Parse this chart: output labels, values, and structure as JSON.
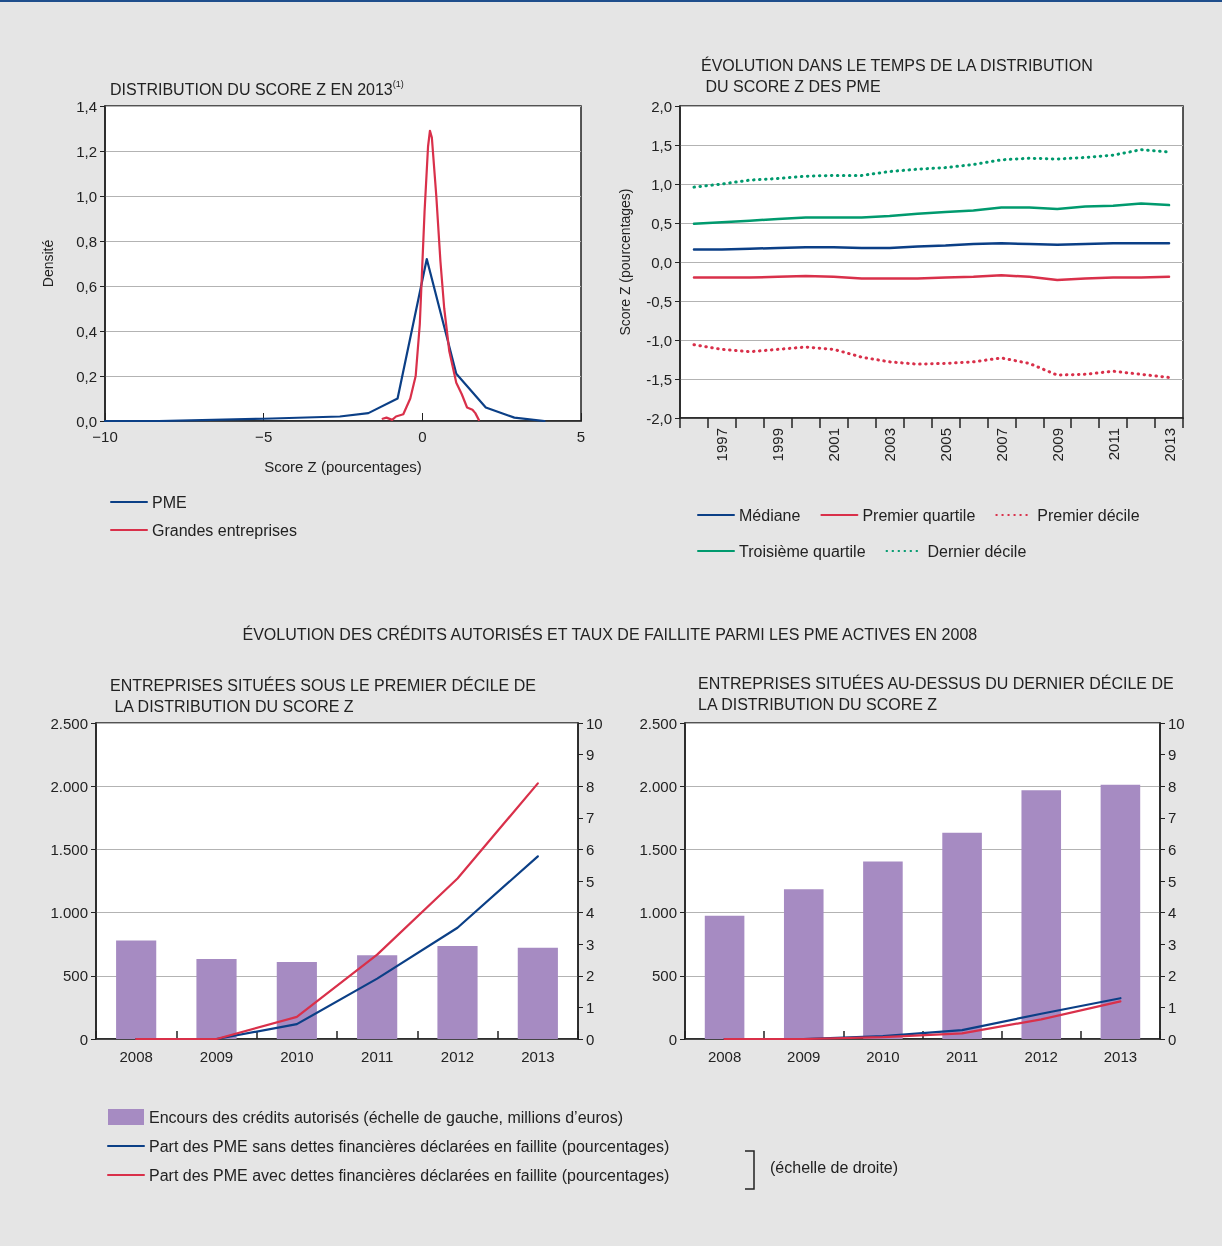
{
  "chart_data": [
    {
      "type": "line",
      "title": "DISTRIBUTION DU SCORE Z EN 2013$^{(1)}$",
      "xlabel": "Score Z (pourcentages)",
      "ylabel": "Densité",
      "xlim": [
        -10,
        5
      ],
      "xticks": [
        {
          "value": -10,
          "label": "−10"
        },
        {
          "value": -5,
          "label": "−5"
        },
        0,
        5
      ],
      "ylim": [
        0,
        1.4
      ],
      "yticks": [
        {
          "value": 0,
          "label": "0,0"
        },
        {
          "value": 0.2,
          "label": "0,2"
        },
        {
          "value": 0.4,
          "label": "0,4"
        },
        {
          "value": 0.6,
          "label": "0,6"
        },
        {
          "value": 0.8,
          "label": "0,8"
        },
        {
          "value": 1,
          "label": "1,0"
        },
        {
          "value": 1.2,
          "label": "1,2"
        },
        {
          "value": 1.4,
          "label": "1,4"
        }
      ],
      "grid": "y",
      "legend": "bottom",
      "marker": "none",
      "series": [
        {
          "name": "PME",
          "color": "#0b3f86",
          "x": [
            -10,
            -8.3,
            -5,
            -2.6,
            -1.7,
            -0.78,
            0.14,
            1.07,
            2.0,
            2.9,
            3.85
          ],
          "values": [
            0,
            0,
            0.01,
            0.02,
            0.035,
            0.1,
            0.72,
            0.21,
            0.06,
            0.015,
            0
          ]
        },
        {
          "name": "Grandes entreprises",
          "color": "#d9304a",
          "x": [
            -1.25,
            -1.13,
            -0.95,
            -0.83,
            -0.6,
            -0.38,
            -0.21,
            -0.08,
            0.07,
            0.18,
            0.24,
            0.3,
            0.44,
            0.57,
            0.69,
            0.85,
            1.07,
            1.24,
            1.41,
            1.58,
            1.67,
            1.78
          ],
          "values": [
            0.01,
            0.015,
            0.005,
            0.02,
            0.03,
            0.1,
            0.2,
            0.43,
            0.93,
            1.22,
            1.29,
            1.26,
            1.0,
            0.71,
            0.5,
            0.31,
            0.17,
            0.12,
            0.06,
            0.05,
            0.035,
            0.005
          ]
        }
      ]
    },
    {
      "type": "line",
      "title": "ÉVOLUTION DANS LE TEMPS DE LA DISTRIBUTION DU SCORE Z DES PME",
      "ylabel": "Score Z (pourcentages)",
      "categories": [
        null,
        "1997",
        null,
        "1999",
        null,
        "2001",
        null,
        "2003",
        null,
        "2005",
        null,
        "2007",
        null,
        "2009",
        null,
        "2011",
        null,
        "2013"
      ],
      "ylim": [
        -2,
        2
      ],
      "yticks": [
        {
          "value": -2,
          "label": "-2,0"
        },
        {
          "value": -1.5,
          "label": "-1,5"
        },
        {
          "value": -1,
          "label": "-1,0"
        },
        {
          "value": -0.5,
          "label": "-0,5"
        },
        {
          "value": 0,
          "label": "0,0"
        },
        {
          "value": 0.5,
          "label": "0,5"
        },
        {
          "value": 1,
          "label": "1,0"
        },
        {
          "value": 1.5,
          "label": "1,5"
        },
        {
          "value": 2,
          "label": "2,0"
        }
      ],
      "grid": "y",
      "legend": "bottom",
      "marker": "none",
      "series": [
        {
          "name": "Médiane",
          "color": "#0b3f86",
          "line_style": "solid",
          "values": [
            0.16,
            0.16,
            0.17,
            0.18,
            0.19,
            0.19,
            0.18,
            0.18,
            0.2,
            0.21,
            0.23,
            0.24,
            0.23,
            0.22,
            0.23,
            0.24,
            0.24,
            0.24
          ]
        },
        {
          "name": "Premier quartile",
          "color": "#d9304a",
          "line_style": "solid",
          "values": [
            -0.2,
            -0.2,
            -0.2,
            -0.19,
            -0.18,
            -0.19,
            -0.21,
            -0.21,
            -0.21,
            -0.2,
            -0.19,
            -0.17,
            -0.19,
            -0.23,
            -0.21,
            -0.2,
            -0.2,
            -0.19
          ]
        },
        {
          "name": "Premier décile",
          "color": "#d9304a",
          "line_style": "dotted",
          "values": [
            -1.06,
            -1.12,
            -1.15,
            -1.12,
            -1.09,
            -1.12,
            -1.22,
            -1.28,
            -1.31,
            -1.3,
            -1.28,
            -1.23,
            -1.3,
            -1.45,
            -1.44,
            -1.4,
            -1.44,
            -1.48
          ]
        },
        {
          "name": "Troisième quartile",
          "color": "#009a6e",
          "line_style": "solid",
          "values": [
            0.49,
            0.51,
            0.53,
            0.55,
            0.57,
            0.57,
            0.57,
            0.59,
            0.62,
            0.64,
            0.66,
            0.7,
            0.7,
            0.68,
            0.71,
            0.72,
            0.75,
            0.73
          ]
        },
        {
          "name": "Dernier décile",
          "color": "#009a6e",
          "line_style": "dotted",
          "values": [
            0.96,
            1.0,
            1.05,
            1.07,
            1.1,
            1.11,
            1.11,
            1.16,
            1.19,
            1.21,
            1.25,
            1.31,
            1.33,
            1.32,
            1.34,
            1.37,
            1.44,
            1.41
          ]
        }
      ]
    },
    {
      "type": "bar",
      "title": "ENTREPRISES SITUÉES SOUS LE PREMIER DÉCILE DE LA DISTRIBUTION DU SCORE Z",
      "annotations": [
        "ÉVOLUTION DES CRÉDITS AUTORISÉS ET TAUX DE FAILLITE PARMI LES PME ACTIVES EN 2008",
        "(échelle de droite)"
      ],
      "categories": [
        "2008",
        "2009",
        "2010",
        "2011",
        "2012",
        "2013"
      ],
      "ylim": [
        0,
        2500
      ],
      "yticks": [
        {
          "value": 0,
          "label": "0"
        },
        {
          "value": 500,
          "label": "500"
        },
        {
          "value": 1000,
          "label": "1.000"
        },
        {
          "value": 1500,
          "label": "1.500"
        },
        {
          "value": 2000,
          "label": "2.000"
        },
        {
          "value": 2500,
          "label": "2.500"
        }
      ],
      "y2lim": [
        0,
        10
      ],
      "y2ticks": [
        {
          "value": 0,
          "label": "0"
        },
        1,
        2,
        3,
        4,
        5,
        6,
        7,
        8,
        9,
        10
      ],
      "grid": "y",
      "legend": "bottom",
      "marker": "none",
      "series": [
        {
          "name": "Encours des crédits autorisés (échelle de gauche, millions d’euros)",
          "color": "#a68bc2",
          "values": [
            780,
            633,
            610,
            662,
            735,
            721
          ]
        },
        {
          "name": "Part des PME sans dettes financières déclarées en faillite (pourcentages)",
          "type": "line",
          "axis": "y2",
          "color": "#0b3f86",
          "values": [
            0,
            0,
            0.47,
            1.91,
            3.52,
            5.78
          ]
        },
        {
          "name": "Part des PME avec dettes financières déclarées en faillite (pourcentages)",
          "type": "line",
          "axis": "y2",
          "color": "#d9304a",
          "values": [
            0,
            0,
            0.7,
            2.67,
            5.08,
            8.09
          ]
        }
      ]
    },
    {
      "type": "bar",
      "title": "ENTREPRISES SITUÉES AU-DESSUS DU DERNIER DÉCILE DE LA DISTRIBUTION DU SCORE Z",
      "categories": [
        "2008",
        "2009",
        "2010",
        "2011",
        "2012",
        "2013"
      ],
      "ylim": [
        0,
        2500
      ],
      "yticks": [
        {
          "value": 0,
          "label": "0"
        },
        {
          "value": 500,
          "label": "500"
        },
        {
          "value": 1000,
          "label": "1.000"
        },
        {
          "value": 1500,
          "label": "1.500"
        },
        {
          "value": 2000,
          "label": "2.000"
        },
        {
          "value": 2500,
          "label": "2.500"
        }
      ],
      "y2lim": [
        0,
        10
      ],
      "y2ticks": [
        {
          "value": 0,
          "label": "0"
        },
        1,
        2,
        3,
        4,
        5,
        6,
        7,
        8,
        9,
        10
      ],
      "grid": "y",
      "marker": "none",
      "series": [
        {
          "color": "#a68bc2",
          "values": [
            976,
            1185,
            1405,
            1631,
            1967,
            2012
          ]
        },
        {
          "type": "line",
          "axis": "y2",
          "color": "#0b3f86",
          "values": [
            0,
            0,
            0.09,
            0.28,
            0.8,
            1.29
          ]
        },
        {
          "type": "line",
          "axis": "y2",
          "color": "#d9304a",
          "values": [
            0,
            0,
            0.06,
            0.18,
            0.62,
            1.19
          ]
        }
      ]
    }
  ]
}
